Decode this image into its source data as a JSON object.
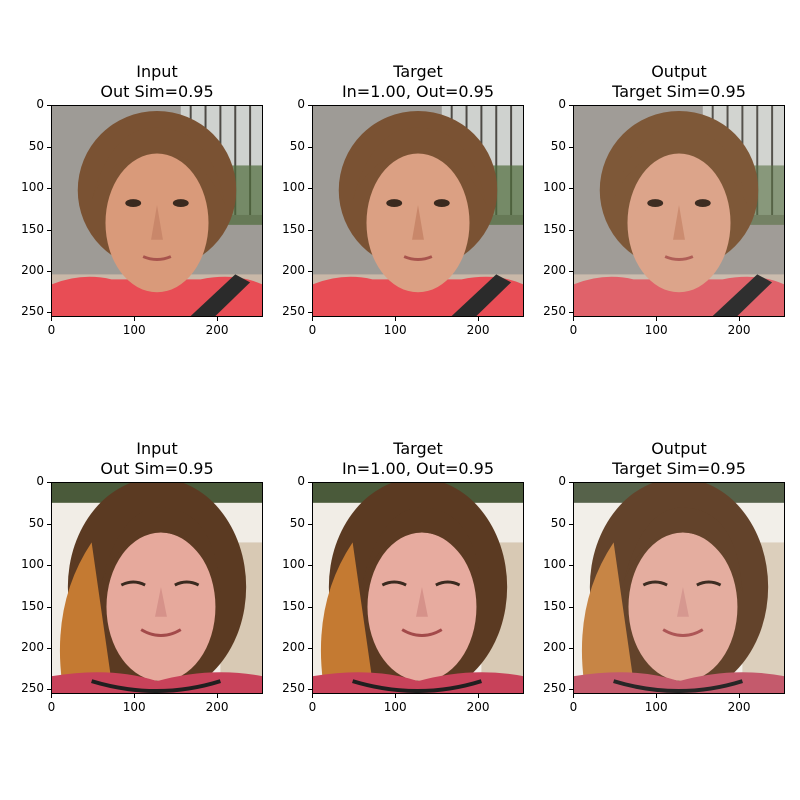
{
  "axes": {
    "y_ticks": [
      "0",
      "50",
      "100",
      "150",
      "200",
      "250"
    ],
    "x_ticks": [
      "0",
      "100",
      "200"
    ]
  },
  "rows": [
    {
      "panels": [
        {
          "title_line1": "Input",
          "title_line2": "Out Sim=0.95"
        },
        {
          "title_line1": "Target",
          "title_line2": "In=1.00, Out=0.95"
        },
        {
          "title_line1": "Output",
          "title_line2": "Target Sim=0.95"
        }
      ]
    },
    {
      "panels": [
        {
          "title_line1": "Input",
          "title_line2": "Out Sim=0.95"
        },
        {
          "title_line1": "Target",
          "title_line2": "In=1.00, Out=0.95"
        },
        {
          "title_line1": "Output",
          "title_line2": "Target Sim=0.95"
        }
      ]
    }
  ],
  "colors": {
    "skin_row1": "#d99a7a",
    "hair_row1": "#7a5233",
    "skin_row2": "#e6a99c",
    "hair_row2": "#5b3a22",
    "shirt_row1": "#e84d55",
    "bg_row2": "#f1ede6"
  }
}
